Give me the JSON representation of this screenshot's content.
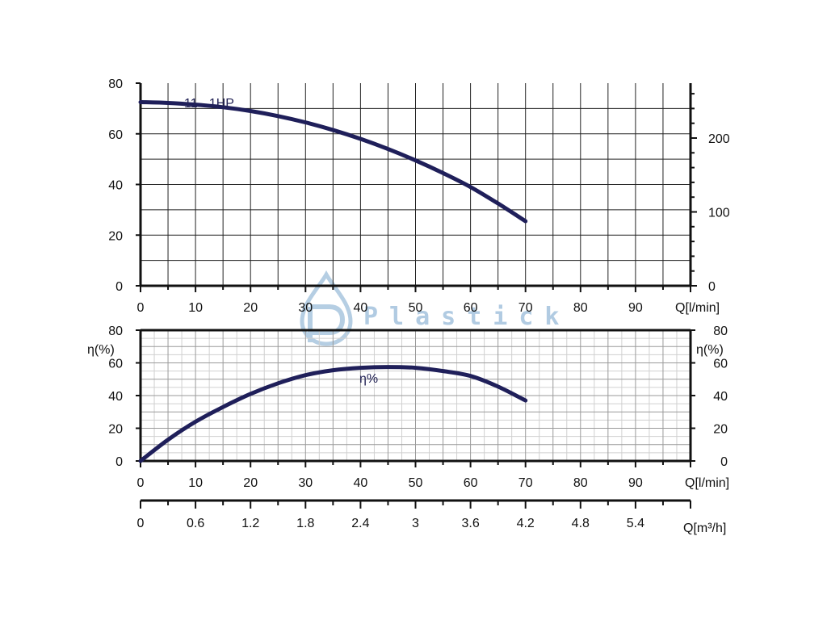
{
  "watermark": {
    "text": "Plastick"
  },
  "colors": {
    "curve": "#1f1f5a",
    "frame": "#111111",
    "grid": "#222222",
    "fine_grid": "#d0d0d0",
    "watermark": "#a9c6df"
  },
  "chart_data": [
    {
      "type": "line",
      "title": "",
      "series": [
        {
          "name": "11 - 1HP",
          "x": [
            0,
            5,
            10,
            15,
            20,
            25,
            30,
            35,
            40,
            45,
            50,
            55,
            60,
            65,
            70
          ],
          "y": [
            72.5,
            72.2,
            71.5,
            70.5,
            69,
            67,
            64.5,
            61.5,
            58,
            54,
            49.5,
            44.5,
            39,
            32.5,
            25.5
          ]
        }
      ],
      "xlim": [
        0,
        100
      ],
      "x_ticks": [
        0,
        10,
        20,
        30,
        40,
        50,
        60,
        70,
        80,
        90
      ],
      "xlabel": "Q[l/min]",
      "ylim": [
        0,
        80
      ],
      "y_ticks": [
        0,
        20,
        40,
        60,
        80
      ],
      "ylabel": "",
      "right_axis": {
        "ticks": [
          0,
          100,
          200
        ]
      },
      "grid": true
    },
    {
      "type": "line",
      "title": "",
      "series": [
        {
          "name": "η%",
          "x": [
            0,
            5,
            10,
            15,
            20,
            25,
            30,
            35,
            40,
            45,
            50,
            55,
            60,
            65,
            70
          ],
          "y": [
            0,
            13,
            24,
            33,
            41,
            47.5,
            52.5,
            55.5,
            57,
            57.5,
            57,
            55,
            52,
            45.5,
            37
          ]
        }
      ],
      "xlim": [
        0,
        100
      ],
      "x_ticks": [
        0,
        10,
        20,
        30,
        40,
        50,
        60,
        70,
        80,
        90
      ],
      "xlabel": "Q[l/min]",
      "ylim": [
        0,
        80
      ],
      "y_ticks": [
        0,
        20,
        40,
        60,
        80
      ],
      "ylabel": "η(%)",
      "right_axis": {
        "label": "η(%)",
        "ticks": [
          0,
          20,
          40,
          60,
          80
        ]
      },
      "grid": true,
      "secondary_x": {
        "label": "Q[m³/h]",
        "ticks": [
          "0",
          "0.6",
          "1.2",
          "1.8",
          "2.4",
          "3",
          "3.6",
          "4.2",
          "4.8",
          "5.4"
        ]
      }
    }
  ]
}
